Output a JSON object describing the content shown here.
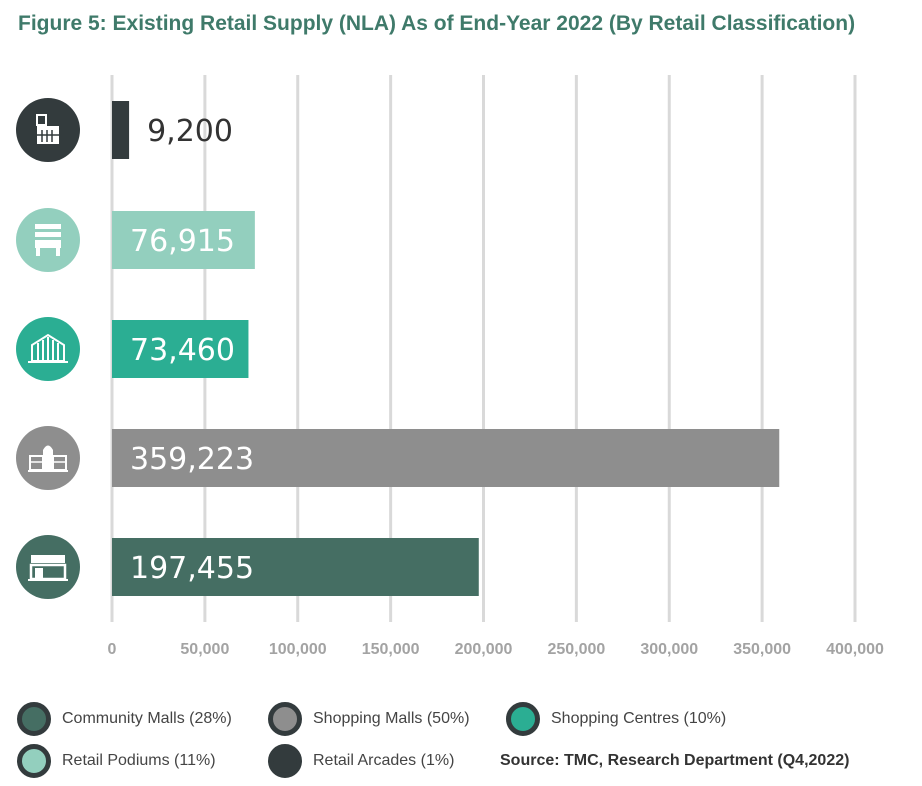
{
  "title": "Figure 5: Existing Retail Supply (NLA) As of End-Year 2022 (By Retail Classification)",
  "source": "Source: TMC, Research Department (Q4,2022)",
  "chart_data": {
    "type": "bar",
    "orientation": "horizontal",
    "categories": [
      "Retail Arcades",
      "Retail Podiums",
      "Shopping Centres",
      "Shopping Malls",
      "Community Malls"
    ],
    "values": [
      9200,
      76915,
      73460,
      359223,
      197455
    ],
    "value_labels": [
      "9,200",
      "76,915",
      "73,460",
      "359,223",
      "197,455"
    ],
    "colors": [
      "#333b3d",
      "#93cfbe",
      "#2bae93",
      "#8e8e8e",
      "#456e63"
    ],
    "icons": [
      "retail-arcade-icon",
      "retail-podium-icon",
      "shopping-centre-icon",
      "shopping-mall-icon",
      "community-mall-icon"
    ],
    "xlim": [
      0,
      400000
    ],
    "xticks": [
      0,
      50000,
      100000,
      150000,
      200000,
      250000,
      300000,
      350000,
      400000
    ],
    "xtick_labels": [
      "0",
      "50,000",
      "100,000",
      "150,000",
      "200,000",
      "250,000",
      "300,000",
      "350,000",
      "400,000"
    ],
    "grid": true,
    "legend_position": "bottom"
  },
  "legend": [
    {
      "label": "Community Malls (28%)",
      "color": "#456e63"
    },
    {
      "label": "Shopping Malls (50%)",
      "color": "#8e8e8e"
    },
    {
      "label": "Shopping Centres (10%)",
      "color": "#2bae93"
    },
    {
      "label": "Retail Podiums (11%)",
      "color": "#93cfbe"
    },
    {
      "label": "Retail Arcades (1%)",
      "color": "#333b3d"
    }
  ]
}
